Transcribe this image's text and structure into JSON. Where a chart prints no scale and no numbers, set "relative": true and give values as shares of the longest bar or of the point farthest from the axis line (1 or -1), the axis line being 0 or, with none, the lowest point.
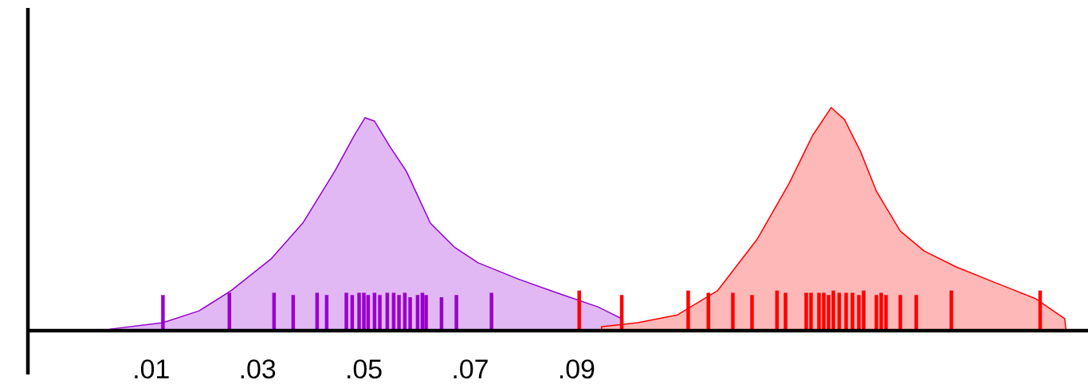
{
  "chart_data": {
    "type": "area",
    "relative": true,
    "xlim": [
      -0.0132,
      0.1862
    ],
    "xticks": [
      {
        "value": 0.01,
        "label": ".01"
      },
      {
        "value": 0.03,
        "label": ".03"
      },
      {
        "value": 0.05,
        "label": ".05"
      },
      {
        "value": 0.07,
        "label": ".07"
      },
      {
        "value": 0.09,
        "label": ".09"
      }
    ],
    "tick_labels": "x",
    "series": [
      {
        "color": "#9400d3",
        "x": [
          0.0022,
          0.0122,
          0.019,
          0.025,
          0.0325,
          0.0385,
          0.0445,
          0.0482,
          0.0502,
          0.052,
          0.055,
          0.058,
          0.0625,
          0.067,
          0.0715,
          0.079,
          0.0865,
          0.094,
          0.0985,
          0.0988
        ],
        "values": [
          0.007,
          0.036,
          0.089,
          0.179,
          0.321,
          0.482,
          0.714,
          0.875,
          0.954,
          0.939,
          0.821,
          0.714,
          0.482,
          0.375,
          0.304,
          0.232,
          0.168,
          0.107,
          0.054,
          0
        ]
      },
      {
        "color": "#ff0000",
        "x": [
          0.0947,
          0.1015,
          0.109,
          0.1165,
          0.124,
          0.13,
          0.1344,
          0.1379,
          0.1404,
          0.1434,
          0.1464,
          0.1509,
          0.1554,
          0.1614,
          0.1689,
          0.1764,
          0.1818,
          0.1821
        ],
        "values": [
          0.018,
          0.036,
          0.071,
          0.179,
          0.411,
          0.661,
          0.875,
          1,
          0.946,
          0.804,
          0.625,
          0.446,
          0.357,
          0.286,
          0.214,
          0.143,
          0.054,
          0
        ]
      },
      {
        "type": "bar",
        "color": "#9900cc",
        "x": [
          0.0122,
          0.0247,
          0.0331,
          0.0367,
          0.0412,
          0.043,
          0.0467,
          0.0478,
          0.0491,
          0.05,
          0.0508,
          0.052,
          0.053,
          0.0544,
          0.0556,
          0.0566,
          0.0577,
          0.0587,
          0.0601,
          0.061,
          0.0617,
          0.0646,
          0.0674,
          0.074
        ],
        "values": [
          0.16,
          0.17,
          0.17,
          0.16,
          0.17,
          0.16,
          0.17,
          0.16,
          0.17,
          0.17,
          0.16,
          0.17,
          0.16,
          0.17,
          0.17,
          0.16,
          0.17,
          0.15,
          0.16,
          0.17,
          0.16,
          0.15,
          0.16,
          0.17
        ]
      },
      {
        "type": "bar",
        "color": "#ff0000",
        "x": [
          0.0905,
          0.0985,
          0.111,
          0.1148,
          0.1194,
          0.123,
          0.1277,
          0.1293,
          0.1332,
          0.1341,
          0.1356,
          0.1365,
          0.1374,
          0.1383,
          0.1394,
          0.1407,
          0.1419,
          0.1431,
          0.144,
          0.1464,
          0.1473,
          0.1482,
          0.1509,
          0.1539,
          0.1605,
          0.1772
        ],
        "values": [
          0.18,
          0.16,
          0.18,
          0.17,
          0.17,
          0.16,
          0.18,
          0.17,
          0.17,
          0.17,
          0.17,
          0.17,
          0.16,
          0.18,
          0.17,
          0.17,
          0.17,
          0.16,
          0.18,
          0.16,
          0.17,
          0.16,
          0.16,
          0.16,
          0.18,
          0.18
        ]
      }
    ]
  }
}
